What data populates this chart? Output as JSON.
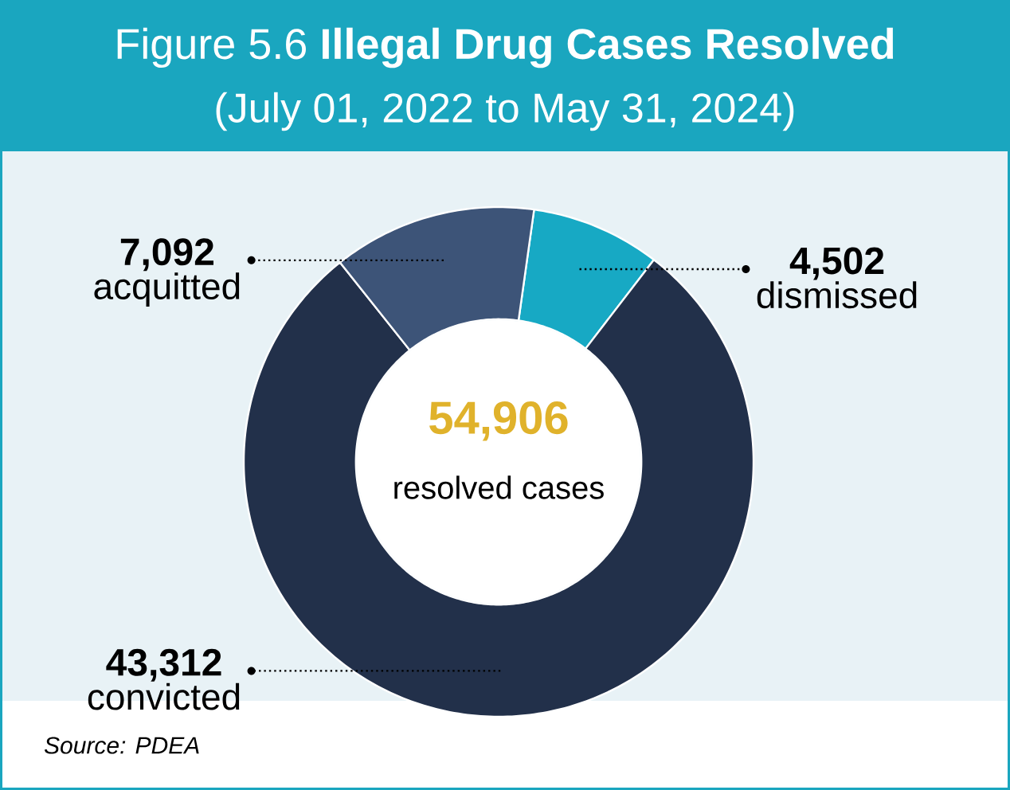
{
  "chart_data": {
    "type": "donut",
    "title": "Figure 5.6  **Illegal Drug Cases Resolved**",
    "subtitle": "(July 01, 2022 to May 31, 2024)",
    "categories": [
      "dismissed",
      "convicted",
      "acquitted"
    ],
    "values": [
      4502,
      43312,
      7092
    ],
    "colors": [
      "#17a9c4",
      "#22304a",
      "#3d5478"
    ],
    "value_labels": [
      "4,502",
      "43,312",
      "7,092"
    ],
    "annotations": [
      "54,906",
      "resolved cases",
      "Source: PDEA"
    ]
  }
}
